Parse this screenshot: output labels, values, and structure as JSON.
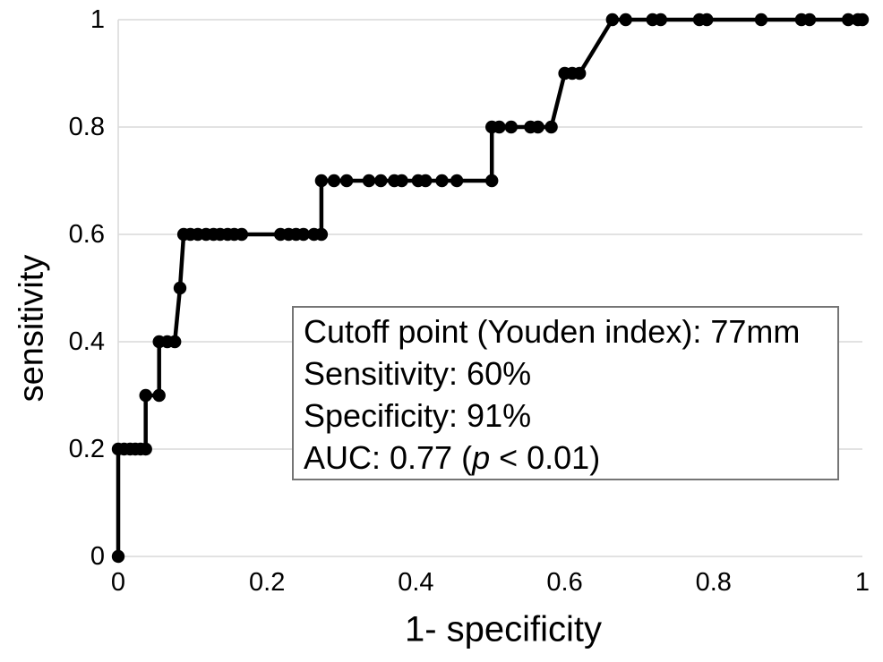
{
  "chart_data": {
    "type": "line",
    "subtype": "roc-curve",
    "title": "",
    "xlabel": "1- specificity",
    "ylabel": "sensitivity",
    "xlim": [
      0,
      1
    ],
    "ylim": [
      0,
      1
    ],
    "grid": "horizontal",
    "legend": "none",
    "line_color": "#000000",
    "gridline_color": "#d9d9d9",
    "marker": "filled-circle",
    "xticks": [
      {
        "v": 0,
        "label": "0"
      },
      {
        "v": 0.2,
        "label": "0.2"
      },
      {
        "v": 0.4,
        "label": "0.4"
      },
      {
        "v": 0.6,
        "label": "0.6"
      },
      {
        "v": 0.8,
        "label": "0.8"
      },
      {
        "v": 1,
        "label": "1"
      }
    ],
    "yticks": [
      {
        "v": 0,
        "label": "0"
      },
      {
        "v": 0.2,
        "label": "0.2"
      },
      {
        "v": 0.4,
        "label": "0.4"
      },
      {
        "v": 0.6,
        "label": "0.6"
      },
      {
        "v": 0.8,
        "label": "0.8"
      },
      {
        "v": 1,
        "label": "1"
      }
    ],
    "points": [
      [
        0,
        0
      ],
      [
        0,
        0.2
      ],
      [
        0.008,
        0.2
      ],
      [
        0.016,
        0.2
      ],
      [
        0.023,
        0.2
      ],
      [
        0.03,
        0.2
      ],
      [
        0.037,
        0.2
      ],
      [
        0.037,
        0.3
      ],
      [
        0.055,
        0.3
      ],
      [
        0.055,
        0.4
      ],
      [
        0.066,
        0.4
      ],
      [
        0.076,
        0.4
      ],
      [
        0.083,
        0.5
      ],
      [
        0.088,
        0.6
      ],
      [
        0.097,
        0.6
      ],
      [
        0.107,
        0.6
      ],
      [
        0.118,
        0.6
      ],
      [
        0.128,
        0.6
      ],
      [
        0.137,
        0.6
      ],
      [
        0.147,
        0.6
      ],
      [
        0.156,
        0.6
      ],
      [
        0.166,
        0.6
      ],
      [
        0.218,
        0.6
      ],
      [
        0.229,
        0.6
      ],
      [
        0.239,
        0.6
      ],
      [
        0.249,
        0.6
      ],
      [
        0.263,
        0.6
      ],
      [
        0.273,
        0.6
      ],
      [
        0.273,
        0.7
      ],
      [
        0.29,
        0.7
      ],
      [
        0.307,
        0.7
      ],
      [
        0.337,
        0.7
      ],
      [
        0.353,
        0.7
      ],
      [
        0.371,
        0.7
      ],
      [
        0.381,
        0.7
      ],
      [
        0.403,
        0.7
      ],
      [
        0.413,
        0.7
      ],
      [
        0.435,
        0.7
      ],
      [
        0.455,
        0.7
      ],
      [
        0.502,
        0.7
      ],
      [
        0.502,
        0.8
      ],
      [
        0.512,
        0.8
      ],
      [
        0.528,
        0.8
      ],
      [
        0.554,
        0.8
      ],
      [
        0.564,
        0.8
      ],
      [
        0.582,
        0.8
      ],
      [
        0.6,
        0.9
      ],
      [
        0.61,
        0.9
      ],
      [
        0.62,
        0.9
      ],
      [
        0.664,
        1
      ],
      [
        0.682,
        1
      ],
      [
        0.718,
        1
      ],
      [
        0.729,
        1
      ],
      [
        0.781,
        1
      ],
      [
        0.791,
        1
      ],
      [
        0.864,
        1
      ],
      [
        0.918,
        1
      ],
      [
        0.929,
        1
      ],
      [
        0.981,
        1
      ],
      [
        0.994,
        1
      ],
      [
        1,
        1
      ]
    ],
    "annotation_box": {
      "line1": "Cutoff point (Youden index): 77mm",
      "line2": "Sensitivity: 60%",
      "line3": "Specificity: 91%",
      "line4_prefix": "AUC: 0.77 (",
      "line4_italic": "p",
      "line4_suffix": " < 0.01)"
    }
  }
}
